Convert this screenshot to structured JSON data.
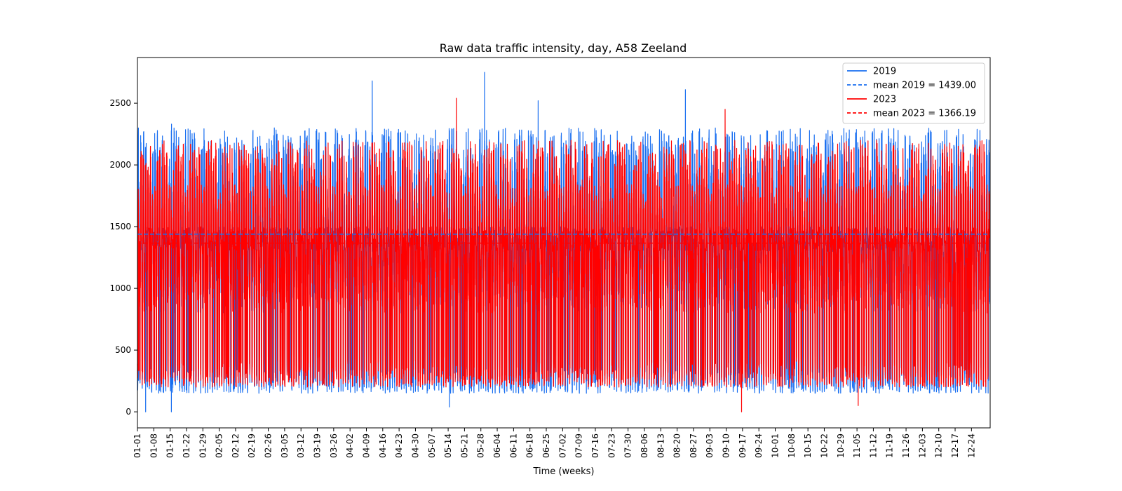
{
  "chart_data": {
    "type": "line",
    "title": "Raw data traffic intensity, day, A58 Zeeland",
    "xlabel": "Time (weeks)",
    "ylabel": "",
    "xlim": [
      "01-01",
      "12-31"
    ],
    "ylim": [
      -130,
      2870
    ],
    "yticks": [
      0,
      500,
      1000,
      1500,
      2000,
      2500
    ],
    "xticks": [
      "01-01",
      "01-08",
      "01-15",
      "01-22",
      "01-29",
      "02-05",
      "02-12",
      "02-19",
      "02-26",
      "03-05",
      "03-12",
      "03-19",
      "03-26",
      "04-02",
      "04-09",
      "04-16",
      "04-23",
      "04-30",
      "05-07",
      "05-14",
      "05-21",
      "05-28",
      "06-04",
      "06-11",
      "06-18",
      "06-25",
      "07-02",
      "07-09",
      "07-16",
      "07-23",
      "07-30",
      "08-06",
      "08-13",
      "08-20",
      "08-27",
      "09-03",
      "09-10",
      "09-17",
      "09-24",
      "10-01",
      "10-08",
      "10-15",
      "10-22",
      "10-29",
      "11-05",
      "11-12",
      "11-19",
      "11-26",
      "12-03",
      "12-10",
      "12-17",
      "12-24"
    ],
    "x_resolution": "hourly",
    "grid": false,
    "legend_position": "top-right",
    "series": [
      {
        "name": "2019",
        "color": "#1a6ff0",
        "style": "solid",
        "typical_range": [
          150,
          2300
        ],
        "notable_points": [
          {
            "x": "01-04",
            "y": 0
          },
          {
            "x": "01-15",
            "y": 0
          },
          {
            "x": "01-15",
            "y": 2330
          },
          {
            "x": "04-11",
            "y": 2680
          },
          {
            "x": "05-14",
            "y": 40
          },
          {
            "x": "05-29",
            "y": 2750
          },
          {
            "x": "06-21",
            "y": 2520
          },
          {
            "x": "08-23",
            "y": 2610
          }
        ]
      },
      {
        "name": "mean 2019 = 1439.00",
        "color": "#1a6ff0",
        "style": "dashed",
        "value": 1439.0
      },
      {
        "name": "2023",
        "color": "#ff0000",
        "style": "solid",
        "typical_range": [
          200,
          2200
        ],
        "notable_points": [
          {
            "x": "05-17",
            "y": 2540
          },
          {
            "x": "09-09",
            "y": 2450
          },
          {
            "x": "09-16",
            "y": 0
          },
          {
            "x": "11-05",
            "y": 50
          }
        ]
      },
      {
        "name": "mean 2023 = 1366.19",
        "color": "#ff0000",
        "style": "dashed",
        "value": 1366.19
      }
    ]
  }
}
